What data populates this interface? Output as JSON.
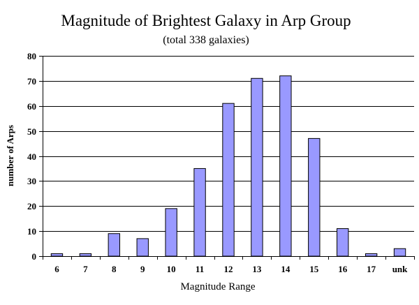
{
  "chart_data": {
    "type": "bar",
    "title": "Magnitude of Brightest Galaxy in Arp Group",
    "subtitle": "(total 338 galaxies)",
    "xlabel": "Magnitude Range",
    "ylabel": "number of Arps",
    "categories": [
      "6",
      "7",
      "8",
      "9",
      "10",
      "11",
      "12",
      "13",
      "14",
      "15",
      "16",
      "17",
      "unk"
    ],
    "values": [
      1,
      1,
      9,
      7,
      19,
      35,
      61,
      71,
      72,
      47,
      11,
      1,
      3
    ],
    "ylim": [
      0,
      80
    ],
    "yticks": [
      0,
      10,
      20,
      30,
      40,
      50,
      60,
      70,
      80
    ],
    "grid": true,
    "legend": "none",
    "bar_color": "#9999ff",
    "bar_stroke": "#000000"
  }
}
